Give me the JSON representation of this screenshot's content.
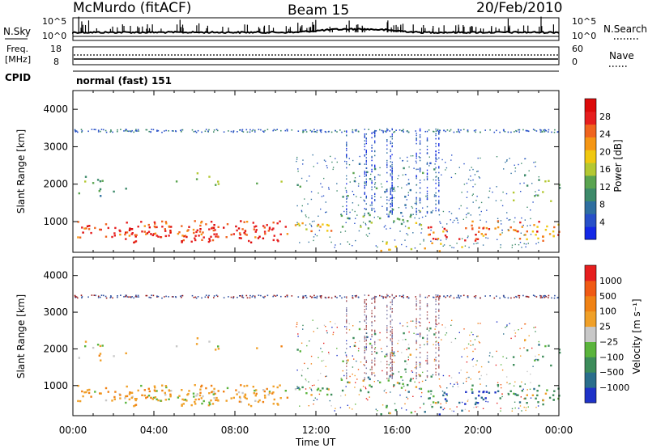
{
  "header": {
    "station": "McMurdo (fitACF)",
    "beam": "Beam 15",
    "date": "20/Feb/2010"
  },
  "noise_panel": {
    "left_label": "N.Sky",
    "right_label": "N.Search",
    "left_ticks": [
      "10^5",
      "10^0"
    ],
    "right_ticks": [
      "10^5",
      "10^0"
    ]
  },
  "freq_panel": {
    "left_label_1": "Freq.",
    "left_label_2": "[MHz]",
    "right_label": "Nave",
    "left_ticks": [
      "18",
      "8"
    ],
    "right_ticks": [
      "60",
      "0"
    ]
  },
  "cpid": {
    "label": "CPID",
    "value": "normal (fast) 151"
  },
  "chart_data": [
    {
      "type": "heatmap",
      "quantity": "Power",
      "ylabel": "Slant Range [km]",
      "xlabel": "",
      "y_ticks": [
        1000,
        2000,
        3000,
        4000
      ],
      "ylim": [
        180,
        4500
      ],
      "x_ticks": [
        "00:00",
        "04:00",
        "08:00",
        "12:00",
        "16:00",
        "20:00",
        "00:00"
      ],
      "xlim_hours": [
        0,
        24
      ],
      "colorbar": {
        "label": "Power [dB]",
        "ticks": [
          "4",
          "8",
          "12",
          "16",
          "20",
          "24",
          "28"
        ],
        "range": [
          0,
          30
        ],
        "colors": [
          "#1428e6",
          "#2850c8",
          "#2f6fa0",
          "#3d8a6a",
          "#5aa450",
          "#b4c832",
          "#f0c810",
          "#f59614",
          "#f0641e",
          "#e61e1e",
          "#dc0a0a"
        ]
      }
    },
    {
      "type": "heatmap",
      "quantity": "Velocity",
      "ylabel": "Slant Range [km]",
      "xlabel": "Time UT",
      "y_ticks": [
        1000,
        2000,
        3000,
        4000
      ],
      "ylim": [
        180,
        4500
      ],
      "x_ticks": [
        "00:00",
        "04:00",
        "08:00",
        "12:00",
        "16:00",
        "20:00",
        "00:00"
      ],
      "xlim_hours": [
        0,
        24
      ],
      "colorbar": {
        "label": "Velocity [m s⁻¹]",
        "ticks": [
          "1000",
          "500",
          "100",
          "25",
          "−25",
          "−100",
          "−500",
          "−1000"
        ],
        "colors": [
          "#1e32c8",
          "#2a6e8c",
          "#3c8c5a",
          "#5ab43c",
          "#c8c8c8",
          "#f0a028",
          "#f08214",
          "#f05a14",
          "#e61e1e"
        ]
      }
    }
  ]
}
